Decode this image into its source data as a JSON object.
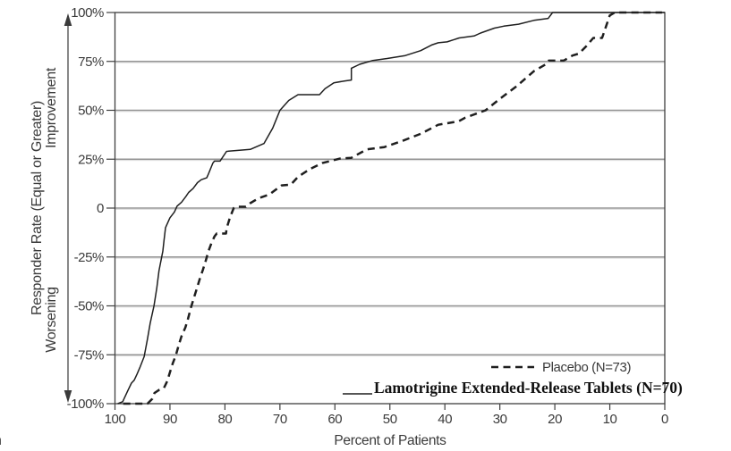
{
  "figure": {
    "corner_partial_text": "n"
  },
  "axes": {
    "y_title": "Responder Rate (Equal or Greater)",
    "y_upper_direction_label": "Improvement",
    "y_lower_direction_label": "Worsening",
    "x_title": "Percent of Patients",
    "y_tick_labels": [
      "100%",
      "75%",
      "50%",
      "25%",
      "0",
      "-25%",
      "-50%",
      "-75%",
      "-100%"
    ],
    "x_tick_labels": [
      "100",
      "90",
      "80",
      "70",
      "60",
      "50",
      "40",
      "30",
      "20",
      "10",
      "0"
    ]
  },
  "legend": {
    "placebo_label": "Placebo (N=73)",
    "lamotrigine_label": "Lamotrigine Extended-Release Tablets (N=70)"
  },
  "colors": {
    "line": "#1f1f1f",
    "grid": "#949494",
    "grid_light": "#dcdcdc",
    "border": "#3f3f3f",
    "text": "#3a3a3a"
  },
  "chart_data": {
    "type": "line",
    "title": "",
    "xlabel": "Percent of Patients",
    "ylabel": "Responder Rate (Equal or Greater)",
    "x_axis": {
      "min": 0,
      "max": 100,
      "tick_step": 10,
      "reversed": true
    },
    "y_axis": {
      "min": -100,
      "max": 100,
      "tick_step": 25,
      "unit": "%"
    },
    "grid": "horizontal-only",
    "legend_position": "inside-bottom-right",
    "series": [
      {
        "name": "Lamotrigine Extended-Release Tablets (N=70)",
        "style": "solid",
        "color": "#1f1f1f",
        "points": [
          [
            99.5,
            -100
          ],
          [
            98.6,
            -99
          ],
          [
            97.6,
            -93
          ],
          [
            97,
            -89.5
          ],
          [
            96.5,
            -88
          ],
          [
            96,
            -85
          ],
          [
            95.4,
            -81
          ],
          [
            94.7,
            -76
          ],
          [
            94.1,
            -67
          ],
          [
            93.6,
            -59
          ],
          [
            92.9,
            -50
          ],
          [
            92.4,
            -41
          ],
          [
            92,
            -32
          ],
          [
            91.3,
            -22
          ],
          [
            91.1,
            -17
          ],
          [
            90.8,
            -10
          ],
          [
            90,
            -5
          ],
          [
            89.2,
            -2
          ],
          [
            88.7,
            1
          ],
          [
            87.9,
            3
          ],
          [
            87.1,
            6
          ],
          [
            86.6,
            8
          ],
          [
            85.8,
            10
          ],
          [
            85,
            13
          ],
          [
            84.3,
            14.5
          ],
          [
            83.3,
            15.5
          ],
          [
            83,
            17.5
          ],
          [
            82.2,
            23
          ],
          [
            81.9,
            24
          ],
          [
            80.9,
            24
          ],
          [
            79.7,
            29
          ],
          [
            75.4,
            30
          ],
          [
            72.9,
            33
          ],
          [
            71.3,
            41
          ],
          [
            70,
            50
          ],
          [
            68.4,
            55
          ],
          [
            66.7,
            58
          ],
          [
            62.8,
            58
          ],
          [
            61.8,
            61
          ],
          [
            60.2,
            64
          ],
          [
            58.3,
            65
          ],
          [
            57,
            65.5
          ],
          [
            57,
            71.5
          ],
          [
            55.5,
            73.5
          ],
          [
            53.1,
            75.5
          ],
          [
            50.5,
            76.5
          ],
          [
            47.2,
            78
          ],
          [
            44.4,
            80.5
          ],
          [
            42.3,
            83.5
          ],
          [
            41.2,
            84.5
          ],
          [
            39.6,
            85
          ],
          [
            37.4,
            87
          ],
          [
            34.7,
            88
          ],
          [
            33.5,
            89.5
          ],
          [
            31,
            92
          ],
          [
            29.3,
            93
          ],
          [
            26.6,
            94
          ],
          [
            23.8,
            96
          ],
          [
            21.2,
            97
          ],
          [
            20.4,
            100
          ],
          [
            0,
            100
          ]
        ]
      },
      {
        "name": "Placebo (N=73)",
        "style": "dashed",
        "color": "#1f1f1f",
        "points": [
          [
            98.5,
            -100
          ],
          [
            94.1,
            -100
          ],
          [
            93.2,
            -97.5
          ],
          [
            92.8,
            -94.5
          ],
          [
            92,
            -93
          ],
          [
            91.1,
            -92
          ],
          [
            90.5,
            -88.5
          ],
          [
            90,
            -84
          ],
          [
            89.5,
            -79.5
          ],
          [
            88.9,
            -75
          ],
          [
            88.4,
            -70
          ],
          [
            87.9,
            -65.5
          ],
          [
            87.2,
            -61
          ],
          [
            86.7,
            -56.5
          ],
          [
            86.2,
            -51
          ],
          [
            85.6,
            -45.5
          ],
          [
            85.1,
            -41
          ],
          [
            84.6,
            -36.5
          ],
          [
            84,
            -31.5
          ],
          [
            83.5,
            -27
          ],
          [
            83,
            -22
          ],
          [
            82.4,
            -17.5
          ],
          [
            81.9,
            -14.5
          ],
          [
            81.5,
            -13
          ],
          [
            79.8,
            -13
          ],
          [
            79.7,
            -10.5
          ],
          [
            79.1,
            -5
          ],
          [
            78.4,
            0
          ],
          [
            78.1,
            0.7
          ],
          [
            76.2,
            0.7
          ],
          [
            75.4,
            2.5
          ],
          [
            74.5,
            4
          ],
          [
            73.6,
            5.3
          ],
          [
            71.9,
            7
          ],
          [
            70.8,
            9.3
          ],
          [
            69.7,
            11.6
          ],
          [
            68,
            12
          ],
          [
            66.7,
            16
          ],
          [
            64.5,
            20
          ],
          [
            62.3,
            23
          ],
          [
            59.1,
            25.3
          ],
          [
            57,
            25.7
          ],
          [
            54.2,
            30
          ],
          [
            51,
            31.2
          ],
          [
            47.7,
            34.4
          ],
          [
            44.4,
            38
          ],
          [
            41.2,
            42.6
          ],
          [
            37.5,
            44.4
          ],
          [
            36.3,
            46.2
          ],
          [
            32.6,
            50
          ],
          [
            29.8,
            56.3
          ],
          [
            27,
            62.2
          ],
          [
            23.8,
            70
          ],
          [
            21.6,
            73.6
          ],
          [
            21.1,
            75.4
          ],
          [
            18.4,
            75.4
          ],
          [
            16.8,
            78
          ],
          [
            15.6,
            79
          ],
          [
            14.3,
            82.7
          ],
          [
            13,
            87
          ],
          [
            11.4,
            87
          ],
          [
            10,
            98.5
          ],
          [
            9.1,
            100
          ],
          [
            0.5,
            100
          ]
        ]
      }
    ]
  }
}
